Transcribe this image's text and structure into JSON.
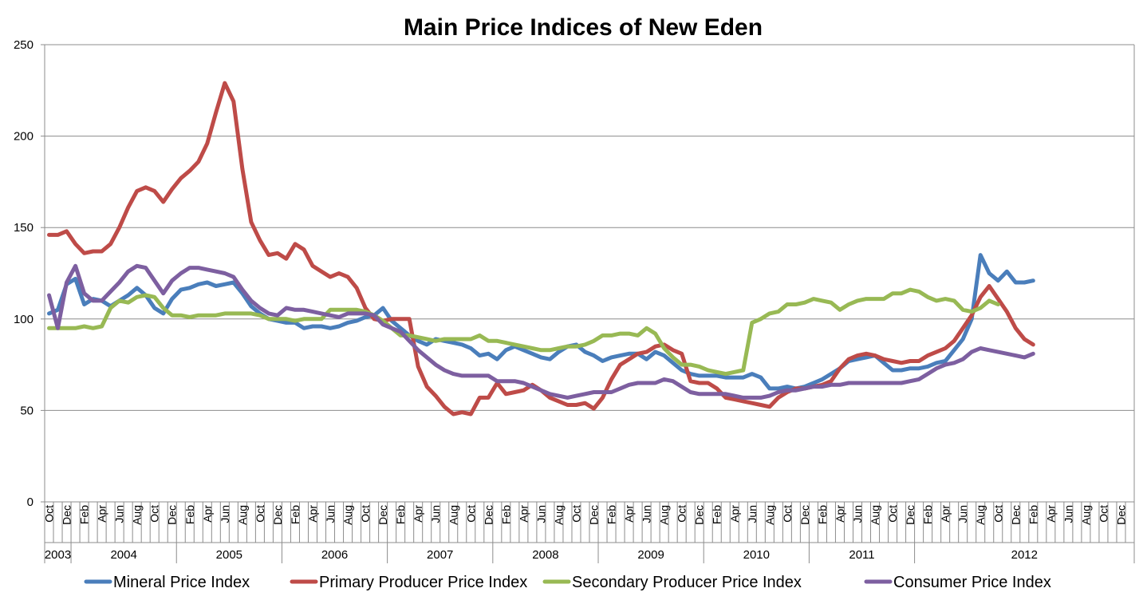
{
  "chart_data": {
    "type": "line",
    "title": "Main Price Indices of New Eden",
    "ylim": [
      0,
      250
    ],
    "yticks": [
      0,
      50,
      100,
      150,
      200,
      250
    ],
    "grid": true,
    "legend_position": "bottom",
    "month_labels": [
      "Oct",
      "Dec",
      "Feb",
      "Apr",
      "Jun",
      "Aug",
      "Oct",
      "Dec",
      "Feb",
      "Apr",
      "Jun",
      "Aug",
      "Oct",
      "Dec",
      "Feb",
      "Apr",
      "Jun",
      "Aug",
      "Oct",
      "Dec",
      "Feb",
      "Apr",
      "Jun",
      "Aug",
      "Oct",
      "Dec",
      "Feb",
      "Apr",
      "Jun",
      "Aug",
      "Oct",
      "Dec",
      "Feb",
      "Apr",
      "Jun",
      "Aug",
      "Oct",
      "Dec",
      "Feb",
      "Apr",
      "Jun",
      "Aug",
      "Oct",
      "Dec",
      "Feb",
      "Apr",
      "Jun",
      "Aug",
      "Oct",
      "Dec",
      "Feb",
      "Apr",
      "Jun",
      "Aug",
      "Oct",
      "Dec",
      "Feb",
      "Apr",
      "Jun",
      "Aug",
      "Oct",
      "Dec"
    ],
    "years": [
      "2003",
      "2004",
      "2005",
      "2006",
      "2007",
      "2008",
      "2009",
      "2010",
      "2011",
      "2012"
    ],
    "x_start": "2003-10",
    "series": [
      {
        "name": "Mineral Price Index",
        "color": "#4a7ebb",
        "values": [
          103,
          105,
          119,
          122,
          108,
          111,
          110,
          107,
          110,
          113,
          117,
          113,
          106,
          103,
          111,
          116,
          117,
          119,
          120,
          118,
          119,
          120,
          114,
          107,
          103,
          100,
          99,
          98,
          98,
          95,
          96,
          96,
          95,
          96,
          98,
          99,
          101,
          102,
          106,
          99,
          95,
          91,
          88,
          86,
          89,
          88,
          87,
          86,
          84,
          80,
          81,
          78,
          83,
          85,
          83,
          81,
          79,
          78,
          82,
          85,
          86,
          82,
          80,
          77,
          79,
          80,
          81,
          81,
          78,
          82,
          80,
          76,
          72,
          70,
          69,
          69,
          69,
          68,
          68,
          68,
          70,
          68,
          62,
          62,
          63,
          62,
          63,
          65,
          67,
          70,
          73,
          77,
          78,
          79,
          80,
          76,
          72,
          72,
          73,
          73,
          74,
          76,
          77,
          83,
          89,
          100,
          135,
          125,
          121,
          126,
          120,
          120,
          121
        ]
      },
      {
        "name": "Primary Producer Price Index",
        "color": "#be4b48",
        "values": [
          146,
          146,
          148,
          141,
          136,
          137,
          137,
          141,
          150,
          161,
          170,
          172,
          170,
          164,
          171,
          177,
          181,
          186,
          196,
          213,
          229,
          219,
          182,
          153,
          143,
          135,
          136,
          133,
          141,
          138,
          129,
          126,
          123,
          125,
          123,
          117,
          106,
          100,
          99,
          100,
          100,
          100,
          74,
          63,
          58,
          52,
          48,
          49,
          48,
          57,
          57,
          65,
          59,
          60,
          61,
          64,
          61,
          57,
          55,
          53,
          53,
          54,
          51,
          57,
          67,
          75,
          78,
          81,
          82,
          85,
          86,
          83,
          81,
          66,
          65,
          65,
          62,
          57,
          56,
          55,
          54,
          53,
          52,
          57,
          60,
          62,
          62,
          63,
          64,
          66,
          73,
          78,
          80,
          81,
          80,
          78,
          77,
          76,
          77,
          77,
          80,
          82,
          84,
          88,
          95,
          102,
          112,
          118,
          111,
          104,
          95,
          89,
          86
        ]
      },
      {
        "name": "Secondary Producer Price Index",
        "color": "#98b954",
        "values": [
          95,
          95,
          95,
          95,
          96,
          95,
          96,
          106,
          110,
          109,
          112,
          113,
          112,
          106,
          102,
          102,
          101,
          102,
          102,
          102,
          103,
          103,
          103,
          103,
          102,
          100,
          100,
          100,
          99,
          100,
          100,
          100,
          105,
          105,
          105,
          105,
          104,
          102,
          99,
          95,
          91,
          91,
          90,
          89,
          88,
          89,
          89,
          89,
          89,
          91,
          88,
          88,
          87,
          86,
          85,
          84,
          83,
          83,
          84,
          85,
          85,
          86,
          88,
          91,
          91,
          92,
          92,
          91,
          95,
          92,
          84,
          79,
          75,
          75,
          74,
          72,
          71,
          70,
          71,
          72,
          98,
          100,
          103,
          104,
          108,
          108,
          109,
          111,
          110,
          109,
          105,
          108,
          110,
          111,
          111,
          111,
          114,
          114,
          116,
          115,
          112,
          110,
          111,
          110,
          105,
          104,
          106,
          110,
          108
        ]
      },
      {
        "name": "Consumer Price Index",
        "color": "#7d5fa0",
        "values": [
          113,
          95,
          120,
          129,
          114,
          110,
          110,
          115,
          120,
          126,
          129,
          128,
          121,
          114,
          121,
          125,
          128,
          128,
          127,
          126,
          125,
          123,
          116,
          110,
          106,
          103,
          102,
          106,
          105,
          105,
          104,
          103,
          102,
          101,
          103,
          103,
          103,
          102,
          97,
          95,
          93,
          88,
          83,
          79,
          75,
          72,
          70,
          69,
          69,
          69,
          69,
          66,
          66,
          66,
          65,
          63,
          61,
          59,
          58,
          57,
          58,
          59,
          60,
          60,
          60,
          62,
          64,
          65,
          65,
          65,
          67,
          66,
          63,
          60,
          59,
          59,
          59,
          59,
          58,
          57,
          57,
          57,
          58,
          60,
          61,
          61,
          62,
          63,
          63,
          64,
          64,
          65,
          65,
          65,
          65,
          65,
          65,
          65,
          66,
          67,
          70,
          73,
          75,
          76,
          78,
          82,
          84,
          83,
          82,
          81,
          80,
          79,
          81
        ]
      }
    ]
  }
}
